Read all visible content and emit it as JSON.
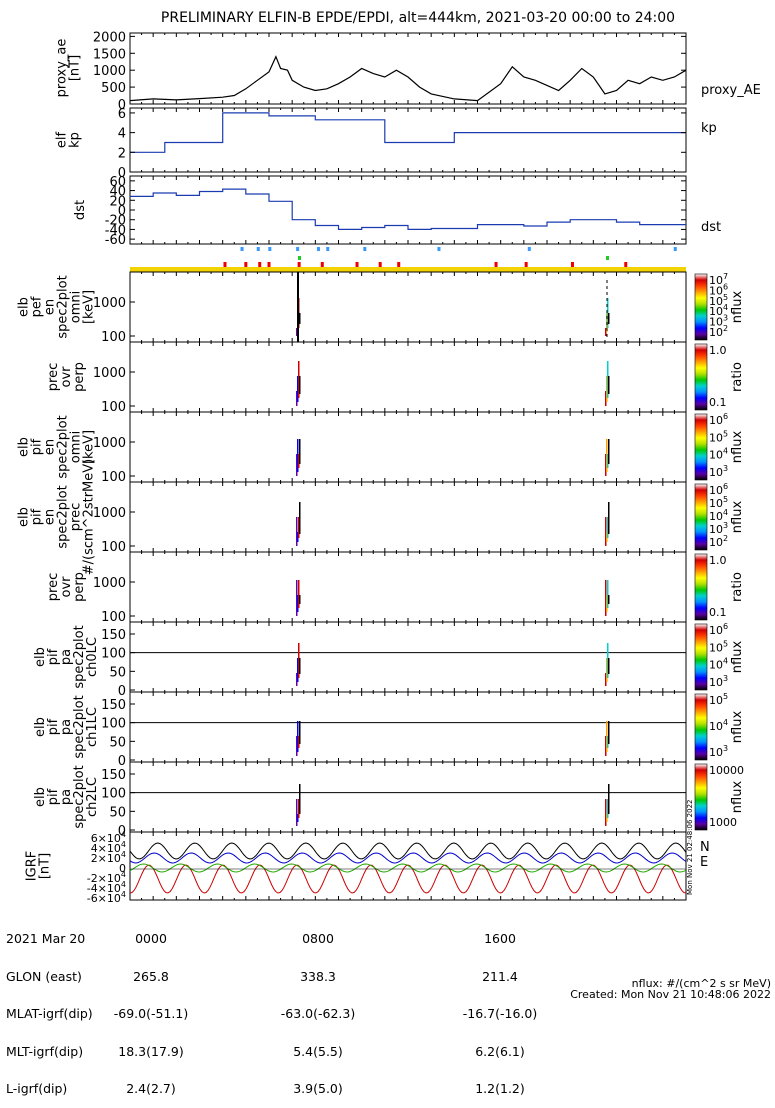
{
  "title": "PRELIMINARY ELFIN-B EPDE/EPDI, alt=444km, 2021-03-20 00:00 to 24:00",
  "chart_data": [
    {
      "type": "line",
      "panel": "proxy_ae",
      "ylabel": "proxy_ae [nT]",
      "legend": "proxy_AE",
      "yticks": [
        "2000",
        "1500",
        "1000",
        "500",
        "0"
      ],
      "ylim": [
        0,
        2100
      ],
      "xlim": [
        0,
        24
      ],
      "x": [
        0,
        1,
        2,
        3,
        4,
        4.5,
        5,
        5.5,
        6,
        6.3,
        6.5,
        6.8,
        7,
        7.5,
        8,
        8.5,
        9,
        9.5,
        10,
        10.5,
        11,
        11.5,
        12,
        12.5,
        13,
        14,
        15,
        16,
        16.5,
        17,
        17.5,
        18,
        18.5,
        19,
        19.5,
        20,
        20.5,
        21,
        21.5,
        22,
        22.5,
        23,
        23.5,
        24
      ],
      "y": [
        100,
        150,
        120,
        160,
        200,
        250,
        450,
        700,
        950,
        1400,
        1050,
        1000,
        700,
        500,
        400,
        450,
        600,
        800,
        1050,
        900,
        800,
        1000,
        800,
        500,
        300,
        150,
        100,
        600,
        1100,
        800,
        700,
        550,
        400,
        700,
        1050,
        800,
        300,
        400,
        700,
        600,
        800,
        700,
        800,
        1000
      ]
    },
    {
      "type": "line",
      "panel": "elf kp",
      "ylabel": "elf kp",
      "legend": "kp",
      "yticks": [
        "6",
        "4",
        "2",
        "0"
      ],
      "ylim": [
        0,
        6.5
      ],
      "xlim": [
        0,
        24
      ],
      "x": [
        0,
        1.5,
        1.5,
        4,
        4,
        6,
        6,
        8,
        8,
        11,
        11,
        14,
        14,
        24
      ],
      "y": [
        2,
        2,
        3,
        3,
        6,
        6,
        5.7,
        5.7,
        5.3,
        5.3,
        3,
        3,
        4,
        4
      ]
    },
    {
      "type": "line",
      "panel": "dst",
      "ylabel": "dst",
      "legend": "dst",
      "yticks": [
        "60",
        "40",
        "20",
        "0",
        "-20",
        "-40",
        "-60"
      ],
      "ylim": [
        -70,
        70
      ],
      "xlim": [
        0,
        24
      ],
      "x": [
        0,
        1,
        1,
        2,
        2,
        3,
        3,
        4,
        4,
        5,
        5,
        6,
        6,
        7,
        7,
        8,
        8,
        9,
        9,
        10,
        10,
        11,
        11,
        12,
        12,
        13,
        13,
        15,
        15,
        17,
        17,
        18,
        18,
        19,
        19,
        21,
        21,
        22,
        22,
        24
      ],
      "y": [
        28,
        28,
        35,
        35,
        30,
        30,
        38,
        38,
        43,
        43,
        33,
        33,
        18,
        18,
        -20,
        -20,
        -32,
        -32,
        -40,
        -40,
        -36,
        -36,
        -32,
        -32,
        -40,
        -40,
        -38,
        -38,
        -30,
        -30,
        -33,
        -33,
        -25,
        -25,
        -20,
        -20,
        -25,
        -25,
        -30,
        -30
      ]
    },
    {
      "type": "heatmap",
      "panel": "elb pef en spec2plot omni",
      "ylabel": "elb pef en spec2plot omni [keV]",
      "yticks": [
        "1000",
        "100"
      ],
      "cbar_label": "nflux",
      "cbar_ticks": [
        "10^7",
        "10^6",
        "10^5",
        "10^4",
        "10^3",
        "10^2"
      ]
    },
    {
      "type": "heatmap",
      "panel": "prec ovr perp (pef)",
      "ylabel": "prec ovr perp",
      "yticks": [
        "1000",
        "100"
      ],
      "cbar_label": "ratio",
      "cbar_ticks": [
        "1.0",
        "0.1"
      ]
    },
    {
      "type": "heatmap",
      "panel": "elb pif en spec2plot omni",
      "ylabel": "elb pif en spec2plot omni [keV]",
      "yticks": [
        "1000",
        "100"
      ],
      "cbar_label": "nflux",
      "cbar_ticks": [
        "10^6",
        "10^5",
        "10^4",
        "10^3"
      ]
    },
    {
      "type": "heatmap",
      "panel": "elb pif en spec2plot prec",
      "ylabel": "elb pif en spec2plot prec #/(scm^2strMeV)",
      "yticks": [
        "1000",
        "100"
      ],
      "cbar_label": "nflux",
      "cbar_ticks": [
        "10^6",
        "10^5",
        "10^4",
        "10^3",
        "10^2"
      ]
    },
    {
      "type": "heatmap",
      "panel": "prec ovr perp (pif)",
      "ylabel": "prec ovr perp",
      "yticks": [
        "1000",
        "100"
      ],
      "cbar_label": "ratio",
      "cbar_ticks": [
        "1.0",
        "0.1"
      ]
    },
    {
      "type": "heatmap",
      "panel": "ch0LC",
      "ylabel": "elb pif pa spec2plot ch0LC",
      "yticks": [
        "150",
        "100",
        "50",
        "0"
      ],
      "cbar_label": "nflux",
      "cbar_ticks": [
        "10^6",
        "10^5",
        "10^4",
        "10^3"
      ]
    },
    {
      "type": "heatmap",
      "panel": "ch1LC",
      "ylabel": "elb pif pa spec2plot ch1LC",
      "yticks": [
        "150",
        "100",
        "50",
        "0"
      ],
      "cbar_label": "nflux",
      "cbar_ticks": [
        "10^5",
        "10^4",
        "10^3"
      ]
    },
    {
      "type": "heatmap",
      "panel": "ch2LC",
      "ylabel": "elb pif pa spec2plot ch2LC",
      "yticks": [
        "150",
        "100",
        "50",
        "0"
      ],
      "cbar_label": "nflux",
      "cbar_ticks": [
        "10000",
        "1000"
      ]
    },
    {
      "type": "line",
      "panel": "IGRF",
      "ylabel": "IGRF [nT]",
      "yticks": [
        "6×10^4",
        "4×10^4",
        "2×10^4",
        "0",
        "-2×10^4",
        "-4×10^4",
        "-6×10^4"
      ],
      "legend": [
        "N",
        "E"
      ],
      "legend_colors": [
        "#cc0000",
        "#22aa00"
      ]
    }
  ],
  "footer": {
    "rows": [
      {
        "label": "2021 Mar 20",
        "v": [
          "0000",
          "0800",
          "1600"
        ]
      },
      {
        "label": "GLON (east)",
        "v": [
          "265.8",
          "338.3",
          "211.4"
        ]
      },
      {
        "label": "MLAT-igrf(dip)",
        "v": [
          "-69.0(-51.1)",
          "-63.0(-62.3)",
          "-16.7(-16.0)"
        ]
      },
      {
        "label": "MLT-igrf(dip)",
        "v": [
          "18.3(17.9)",
          "5.4(5.5)",
          "6.2(6.1)"
        ]
      },
      {
        "label": "L-igrf(dip)",
        "v": [
          "2.4(2.7)",
          "3.9(5.0)",
          "1.2(1.2)"
        ]
      }
    ],
    "nflux_units": "nflux: #/(cm^2 s sr MeV)",
    "created": "Created: Mon Nov 21 10:48:06 2022",
    "stamp": "Mon Nov 21 02:48:06 2022"
  }
}
